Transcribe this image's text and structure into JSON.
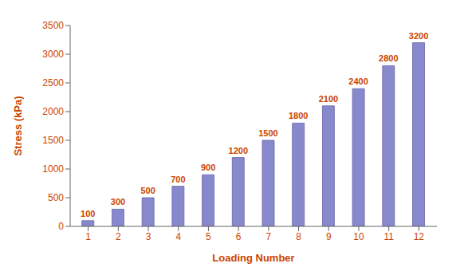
{
  "chart_data": {
    "type": "bar",
    "xlabel": "Loading Number",
    "ylabel": "Stress (kPa)",
    "x": [
      1,
      2,
      3,
      4,
      5,
      6,
      7,
      8,
      9,
      10,
      11,
      12
    ],
    "values": [
      100,
      300,
      500,
      700,
      900,
      1200,
      1500,
      1800,
      2100,
      2400,
      2800,
      3200
    ],
    "color": "#8888cc",
    "xlim": [
      0.4,
      12.6
    ],
    "xticks": [
      1,
      2,
      3,
      4,
      5,
      6,
      7,
      8,
      9,
      10,
      11,
      12
    ],
    "ylim": [
      0,
      3500
    ],
    "yticks": [
      0,
      500,
      1000,
      1500,
      2000,
      2500,
      3000,
      3500
    ],
    "data_labels": true,
    "grid": false
  }
}
